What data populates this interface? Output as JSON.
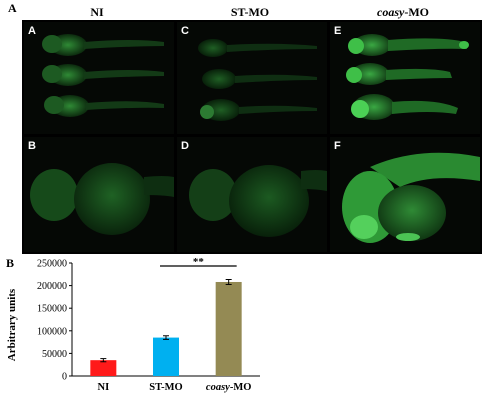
{
  "figure": {
    "label_a": "A",
    "label_b": "B",
    "columns": [
      {
        "label_plain": "NI",
        "label_italic": "",
        "label_suffix": ""
      },
      {
        "label_plain": "ST-MO",
        "label_italic": "",
        "label_suffix": ""
      },
      {
        "label_plain": "",
        "label_italic": "coasy",
        "label_suffix": "-MO"
      }
    ],
    "panels": [
      "A",
      "C",
      "E",
      "B",
      "D",
      "F"
    ],
    "fluorescence_color": "#2fbf3a"
  },
  "chart_data": {
    "type": "bar",
    "categories": [
      "NI",
      "ST-MO",
      "coasy-MO"
    ],
    "category_italic_part": [
      "",
      "",
      "coasy"
    ],
    "values": [
      35000,
      85000,
      208000
    ],
    "errors": [
      3500,
      4000,
      5500
    ],
    "colors": [
      "#ff1a1a",
      "#00b0f0",
      "#948a54"
    ],
    "ylabel": "Arbitrary units",
    "xlabel": "",
    "ylim": [
      0,
      250000
    ],
    "yticks": [
      0,
      50000,
      100000,
      150000,
      200000,
      250000
    ],
    "significance": {
      "from": "ST-MO",
      "to": "coasy-MO",
      "label": "**"
    },
    "grid": false
  }
}
